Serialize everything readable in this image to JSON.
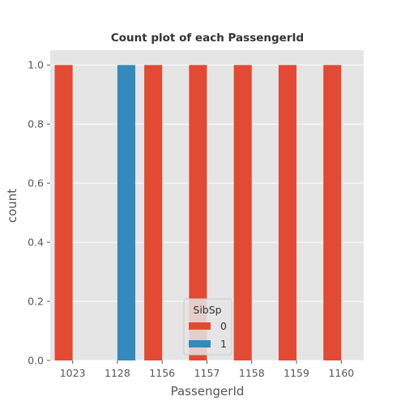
{
  "chart_data": {
    "type": "bar",
    "title": "Count plot of each PassengerId",
    "xlabel": "PassengerId",
    "ylabel": "count",
    "categories": [
      "1023",
      "1128",
      "1156",
      "1157",
      "1158",
      "1159",
      "1160"
    ],
    "hue_title": "SibSp",
    "series": [
      {
        "name": "0",
        "color": "#E24A33",
        "values": [
          1,
          0,
          1,
          1,
          1,
          1,
          1
        ]
      },
      {
        "name": "1",
        "color": "#348ABD",
        "values": [
          0,
          1,
          0,
          0,
          0,
          0,
          0
        ]
      }
    ],
    "ylim": [
      0,
      1.05
    ],
    "yticks": [
      "0.0",
      "0.2",
      "0.4",
      "0.6",
      "0.8",
      "1.0"
    ],
    "grid": true,
    "legend_position": "bottom-center"
  }
}
